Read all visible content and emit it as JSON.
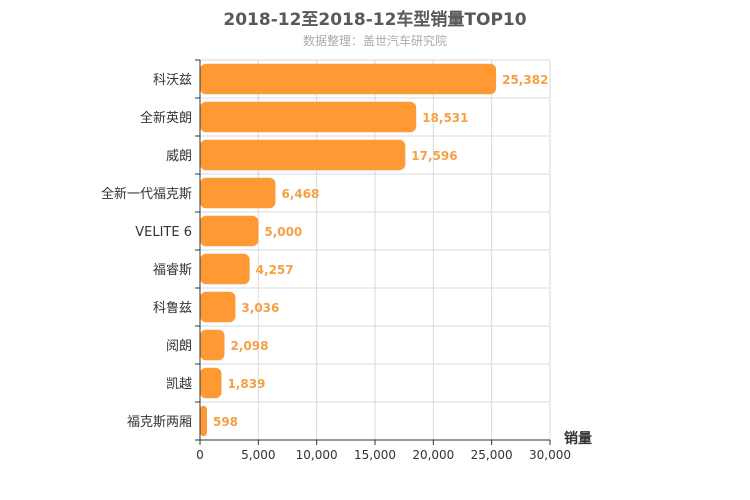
{
  "chart_data": {
    "type": "bar",
    "orientation": "horizontal",
    "title": "2018-12至2018-12车型销量TOP10",
    "subtitle": "数据整理：盖世汽车研究院",
    "categories": [
      "科沃兹",
      "全新英朗",
      "威朗",
      "全新一代福克斯",
      "VELITE 6",
      "福睿斯",
      "科鲁兹",
      "阅朗",
      "凯越",
      "福克斯两厢"
    ],
    "values": [
      25382,
      18531,
      17596,
      6468,
      5000,
      4257,
      3036,
      2098,
      1839,
      598
    ],
    "value_labels": [
      "25,382",
      "18,531",
      "17,596",
      "6,468",
      "5,000",
      "4,257",
      "3,036",
      "2,098",
      "1,839",
      "598"
    ],
    "xlim": [
      0,
      30000
    ],
    "x_ticks": [
      "0",
      "5,000",
      "10,000",
      "15,000",
      "20,000",
      "25,000",
      "30,000"
    ],
    "xlabel": "销量",
    "ylabel": "",
    "grid": true,
    "bar_color": "#ff9933",
    "label_color": "#f5a044"
  }
}
